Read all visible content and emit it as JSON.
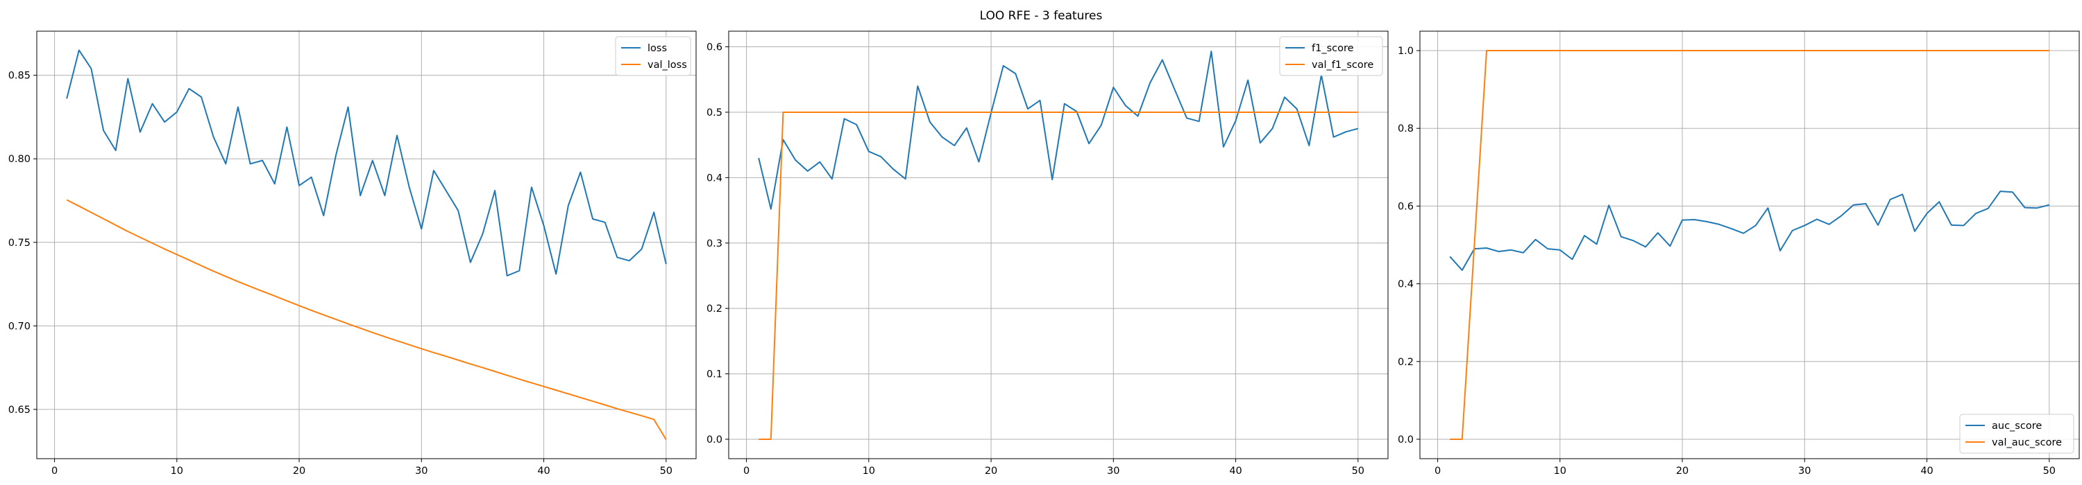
{
  "figure_title": "LOO RFE - 3 features",
  "colors": {
    "series1": "#1f77b4",
    "series2": "#ff7f0e",
    "grid": "#b0b0b0",
    "axis": "#000000"
  },
  "chart_data": [
    {
      "type": "line",
      "title": "",
      "xlabel": "",
      "ylabel": "",
      "xlim": [
        -1.45,
        52.45
      ],
      "ylim": [
        0.6205,
        0.8764
      ],
      "xticks": [
        0,
        10,
        20,
        30,
        40,
        50
      ],
      "yticks": [
        0.65,
        0.7,
        0.75,
        0.8,
        0.85
      ],
      "ytick_labels": [
        "0.65",
        "0.70",
        "0.75",
        "0.80",
        "0.85"
      ],
      "grid": true,
      "legend_position": "top-right",
      "x": [
        1,
        2,
        3,
        4,
        5,
        6,
        7,
        8,
        9,
        10,
        11,
        12,
        13,
        14,
        15,
        16,
        17,
        18,
        19,
        20,
        21,
        22,
        23,
        24,
        25,
        26,
        27,
        28,
        29,
        30,
        31,
        32,
        33,
        34,
        35,
        36,
        37,
        38,
        39,
        40,
        41,
        42,
        43,
        44,
        45,
        46,
        47,
        48,
        49,
        50
      ],
      "series": [
        {
          "name": "loss",
          "values": [
            0.836,
            0.865,
            0.854,
            0.817,
            0.805,
            0.848,
            0.816,
            0.833,
            0.822,
            0.828,
            0.842,
            0.837,
            0.813,
            0.797,
            0.831,
            0.797,
            0.799,
            0.785,
            0.819,
            0.784,
            0.789,
            0.766,
            0.802,
            0.831,
            0.778,
            0.799,
            0.778,
            0.814,
            0.783,
            0.758,
            0.793,
            0.781,
            0.769,
            0.738,
            0.755,
            0.781,
            0.73,
            0.733,
            0.783,
            0.76,
            0.731,
            0.772,
            0.792,
            0.764,
            0.762,
            0.741,
            0.739,
            0.746,
            0.768,
            0.737
          ]
        },
        {
          "name": "val_loss",
          "values": [
            0.7754,
            0.7717,
            0.7679,
            0.7641,
            0.7603,
            0.7565,
            0.753,
            0.7495,
            0.746,
            0.7427,
            0.7394,
            0.736,
            0.7327,
            0.7296,
            0.7265,
            0.7236,
            0.7207,
            0.7179,
            0.715,
            0.7121,
            0.7093,
            0.7066,
            0.7039,
            0.7012,
            0.6986,
            0.696,
            0.6935,
            0.6911,
            0.6887,
            0.6863,
            0.684,
            0.6818,
            0.6795,
            0.6772,
            0.675,
            0.6727,
            0.6704,
            0.6681,
            0.6659,
            0.6637,
            0.6615,
            0.6593,
            0.6571,
            0.6549,
            0.6527,
            0.6504,
            0.6483,
            0.6462,
            0.644,
            0.6319
          ]
        }
      ]
    },
    {
      "type": "line",
      "title": "",
      "xlabel": "",
      "ylabel": "",
      "xlim": [
        -1.45,
        52.45
      ],
      "ylim": [
        -0.0297,
        0.6239
      ],
      "xticks": [
        0,
        10,
        20,
        30,
        40,
        50
      ],
      "yticks": [
        0.0,
        0.1,
        0.2,
        0.3,
        0.4,
        0.5,
        0.6
      ],
      "ytick_labels": [
        "0.0",
        "0.1",
        "0.2",
        "0.3",
        "0.4",
        "0.5",
        "0.6"
      ],
      "grid": true,
      "legend_position": "top-right",
      "x": [
        1,
        2,
        3,
        4,
        5,
        6,
        7,
        8,
        9,
        10,
        11,
        12,
        13,
        14,
        15,
        16,
        17,
        18,
        19,
        20,
        21,
        22,
        23,
        24,
        25,
        26,
        27,
        28,
        29,
        30,
        31,
        32,
        33,
        34,
        35,
        36,
        37,
        38,
        39,
        40,
        41,
        42,
        43,
        44,
        45,
        46,
        47,
        48,
        49,
        50
      ],
      "series": [
        {
          "name": "f1_score",
          "values": [
            0.43,
            0.352,
            0.458,
            0.427,
            0.41,
            0.424,
            0.398,
            0.49,
            0.481,
            0.44,
            0.432,
            0.413,
            0.398,
            0.54,
            0.485,
            0.462,
            0.449,
            0.476,
            0.424,
            0.499,
            0.571,
            0.559,
            0.505,
            0.518,
            0.397,
            0.513,
            0.501,
            0.452,
            0.48,
            0.538,
            0.51,
            0.494,
            0.545,
            0.58,
            0.535,
            0.491,
            0.486,
            0.593,
            0.447,
            0.487,
            0.549,
            0.453,
            0.475,
            0.523,
            0.505,
            0.449,
            0.557,
            0.462,
            0.47,
            0.475
          ]
        },
        {
          "name": "val_f1_score",
          "values": [
            0.0,
            0.0,
            0.5,
            0.5,
            0.5,
            0.5,
            0.5,
            0.5,
            0.5,
            0.5,
            0.5,
            0.5,
            0.5,
            0.5,
            0.5,
            0.5,
            0.5,
            0.5,
            0.5,
            0.5,
            0.5,
            0.5,
            0.5,
            0.5,
            0.5,
            0.5,
            0.5,
            0.5,
            0.5,
            0.5,
            0.5,
            0.5,
            0.5,
            0.5,
            0.5,
            0.5,
            0.5,
            0.5,
            0.5,
            0.5,
            0.5,
            0.5,
            0.5,
            0.5,
            0.5,
            0.5,
            0.5,
            0.5,
            0.5,
            0.5
          ]
        }
      ]
    },
    {
      "type": "line",
      "title": "",
      "xlabel": "",
      "ylabel": "",
      "xlim": [
        -1.45,
        52.45
      ],
      "ylim": [
        -0.05,
        1.05
      ],
      "xticks": [
        0,
        10,
        20,
        30,
        40,
        50
      ],
      "yticks": [
        0.0,
        0.2,
        0.4,
        0.6,
        0.8,
        1.0
      ],
      "ytick_labels": [
        "0.0",
        "0.2",
        "0.4",
        "0.6",
        "0.8",
        "1.0"
      ],
      "grid": true,
      "legend_position": "bottom-right",
      "x": [
        1,
        2,
        3,
        4,
        5,
        6,
        7,
        8,
        9,
        10,
        11,
        12,
        13,
        14,
        15,
        16,
        17,
        18,
        19,
        20,
        21,
        22,
        23,
        24,
        25,
        26,
        27,
        28,
        29,
        30,
        31,
        32,
        33,
        34,
        35,
        36,
        37,
        38,
        39,
        40,
        41,
        42,
        43,
        44,
        45,
        46,
        47,
        48,
        49,
        50
      ],
      "series": [
        {
          "name": "auc_score",
          "values": [
            0.47,
            0.435,
            0.49,
            0.492,
            0.483,
            0.487,
            0.48,
            0.514,
            0.49,
            0.487,
            0.463,
            0.524,
            0.502,
            0.602,
            0.521,
            0.511,
            0.495,
            0.531,
            0.497,
            0.564,
            0.565,
            0.56,
            0.553,
            0.542,
            0.53,
            0.55,
            0.595,
            0.485,
            0.537,
            0.55,
            0.566,
            0.553,
            0.575,
            0.603,
            0.606,
            0.551,
            0.617,
            0.63,
            0.535,
            0.581,
            0.611,
            0.551,
            0.55,
            0.581,
            0.594,
            0.638,
            0.636,
            0.596,
            0.595,
            0.603
          ]
        },
        {
          "name": "val_auc_score",
          "values": [
            0.0,
            0.0,
            0.5,
            1.0,
            1.0,
            1.0,
            1.0,
            1.0,
            1.0,
            1.0,
            1.0,
            1.0,
            1.0,
            1.0,
            1.0,
            1.0,
            1.0,
            1.0,
            1.0,
            1.0,
            1.0,
            1.0,
            1.0,
            1.0,
            1.0,
            1.0,
            1.0,
            1.0,
            1.0,
            1.0,
            1.0,
            1.0,
            1.0,
            1.0,
            1.0,
            1.0,
            1.0,
            1.0,
            1.0,
            1.0,
            1.0,
            1.0,
            1.0,
            1.0,
            1.0,
            1.0,
            1.0,
            1.0,
            1.0,
            1.0
          ]
        }
      ]
    }
  ]
}
